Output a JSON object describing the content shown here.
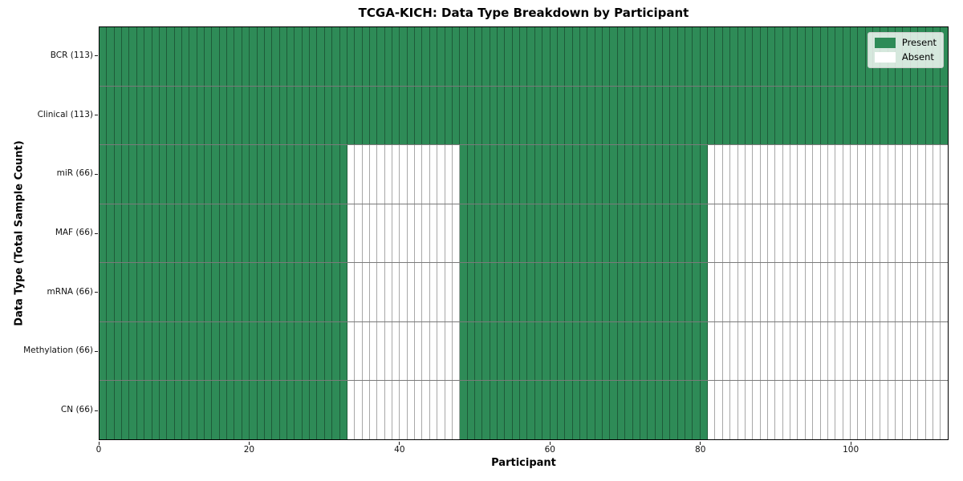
{
  "chart_data": {
    "type": "heatmap",
    "title": "TCGA-KICH: Data Type Breakdown by Participant",
    "xlabel": "Participant",
    "ylabel": "Data Type (Total Sample Count)",
    "n_participants": 113,
    "xlim": [
      0,
      113
    ],
    "x_ticks": [
      0,
      20,
      40,
      60,
      80,
      100
    ],
    "legend_position": "upper right",
    "rows": [
      {
        "label": "BCR (113)",
        "data_type": "BCR",
        "total_samples": 113,
        "present_ranges": [
          [
            0,
            113
          ]
        ]
      },
      {
        "label": "Clinical (113)",
        "data_type": "Clinical",
        "total_samples": 113,
        "present_ranges": [
          [
            0,
            113
          ]
        ]
      },
      {
        "label": "miR (66)",
        "data_type": "miR",
        "total_samples": 66,
        "present_ranges": [
          [
            0,
            33
          ],
          [
            48,
            81
          ]
        ]
      },
      {
        "label": "MAF (66)",
        "data_type": "MAF",
        "total_samples": 66,
        "present_ranges": [
          [
            0,
            33
          ],
          [
            48,
            81
          ]
        ]
      },
      {
        "label": "mRNA (66)",
        "data_type": "mRNA",
        "total_samples": 66,
        "present_ranges": [
          [
            0,
            33
          ],
          [
            48,
            81
          ]
        ]
      },
      {
        "label": "Methylation (66)",
        "data_type": "Methylation",
        "total_samples": 66,
        "present_ranges": [
          [
            0,
            33
          ],
          [
            48,
            81
          ]
        ]
      },
      {
        "label": "CN (66)",
        "data_type": "CN",
        "total_samples": 66,
        "present_ranges": [
          [
            0,
            33
          ],
          [
            48,
            81
          ]
        ]
      }
    ],
    "legend": [
      {
        "label": "Present",
        "color": "#2e8b57"
      },
      {
        "label": "Absent",
        "color": "#ffffff"
      }
    ],
    "colors": {
      "present": "#2e8b57",
      "absent": "#ffffff",
      "axis": "#000000"
    }
  }
}
